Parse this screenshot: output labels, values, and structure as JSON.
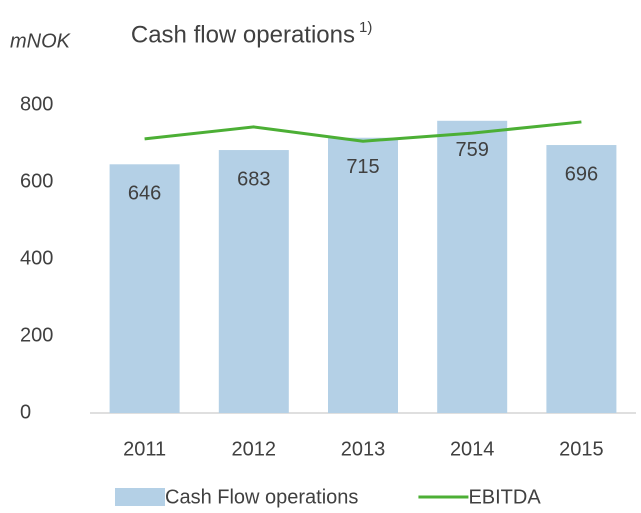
{
  "chart_data": {
    "type": "bar",
    "title": "Cash flow operations",
    "title_note": "1)",
    "y_label": "mNOK",
    "categories": [
      "2011",
      "2012",
      "2013",
      "2014",
      "2015"
    ],
    "series": [
      {
        "name": "Cash Flow operations",
        "type": "bar",
        "color": "#b4d0e6",
        "values": [
          646,
          683,
          715,
          759,
          696
        ]
      },
      {
        "name": "EBITDA",
        "type": "line",
        "color": "#4caf35",
        "values": [
          712,
          743,
          706,
          727,
          756
        ]
      }
    ],
    "ylim": [
      0,
      800
    ],
    "yticks": [
      0,
      200,
      400,
      600,
      800
    ],
    "grid": false,
    "legend": "bottom"
  }
}
